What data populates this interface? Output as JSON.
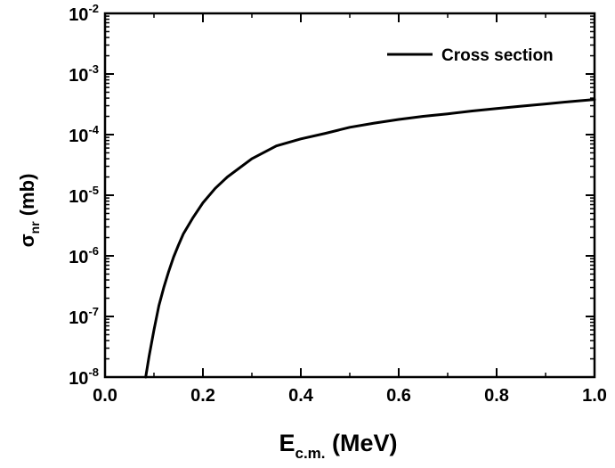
{
  "chart_data": {
    "type": "line",
    "x_axis": {
      "label_main": "E",
      "label_sub": "c.m.",
      "label_unit": " (MeV)",
      "range": [
        0.0,
        1.0
      ],
      "ticks": [
        0.0,
        0.2,
        0.4,
        0.6,
        0.8,
        1.0
      ],
      "tick_labels": [
        "0.0",
        "0.2",
        "0.4",
        "0.6",
        "0.8",
        "1.0"
      ]
    },
    "y_axis": {
      "label_main": "σ",
      "label_sub": "nr",
      "label_unit": " (mb)",
      "scale": "log",
      "range": [
        1e-08,
        0.01
      ],
      "ticks": [
        1e-08,
        1e-07,
        1e-06,
        1e-05,
        0.0001,
        0.001,
        0.01
      ],
      "tick_labels": [
        {
          "base": "10",
          "exp": "-8"
        },
        {
          "base": "10",
          "exp": "-7"
        },
        {
          "base": "10",
          "exp": "-6"
        },
        {
          "base": "10",
          "exp": "-5"
        },
        {
          "base": "10",
          "exp": "-4"
        },
        {
          "base": "10",
          "exp": "-3"
        },
        {
          "base": "10",
          "exp": "-2"
        }
      ]
    },
    "grid": false,
    "legend": {
      "position": "top-right"
    },
    "series": [
      {
        "name": "Cross section",
        "color": "#000000",
        "x": [
          0.083,
          0.09,
          0.1,
          0.11,
          0.12,
          0.13,
          0.14,
          0.15,
          0.16,
          0.18,
          0.2,
          0.225,
          0.25,
          0.3,
          0.35,
          0.4,
          0.45,
          0.5,
          0.55,
          0.6,
          0.65,
          0.7,
          0.75,
          0.8,
          0.85,
          0.9,
          0.95,
          1.0
        ],
        "y": [
          1e-08,
          2.2e-08,
          6e-08,
          1.5e-07,
          3e-07,
          5.5e-07,
          9.5e-07,
          1.5e-06,
          2.3e-06,
          4.3e-06,
          7.5e-06,
          1.3e-05,
          2e-05,
          4e-05,
          6.5e-05,
          8.5e-05,
          0.000105,
          0.000132,
          0.000155,
          0.000178,
          0.0002,
          0.00022,
          0.000245,
          0.00027,
          0.000295,
          0.00032,
          0.00035,
          0.00038
        ]
      }
    ]
  }
}
